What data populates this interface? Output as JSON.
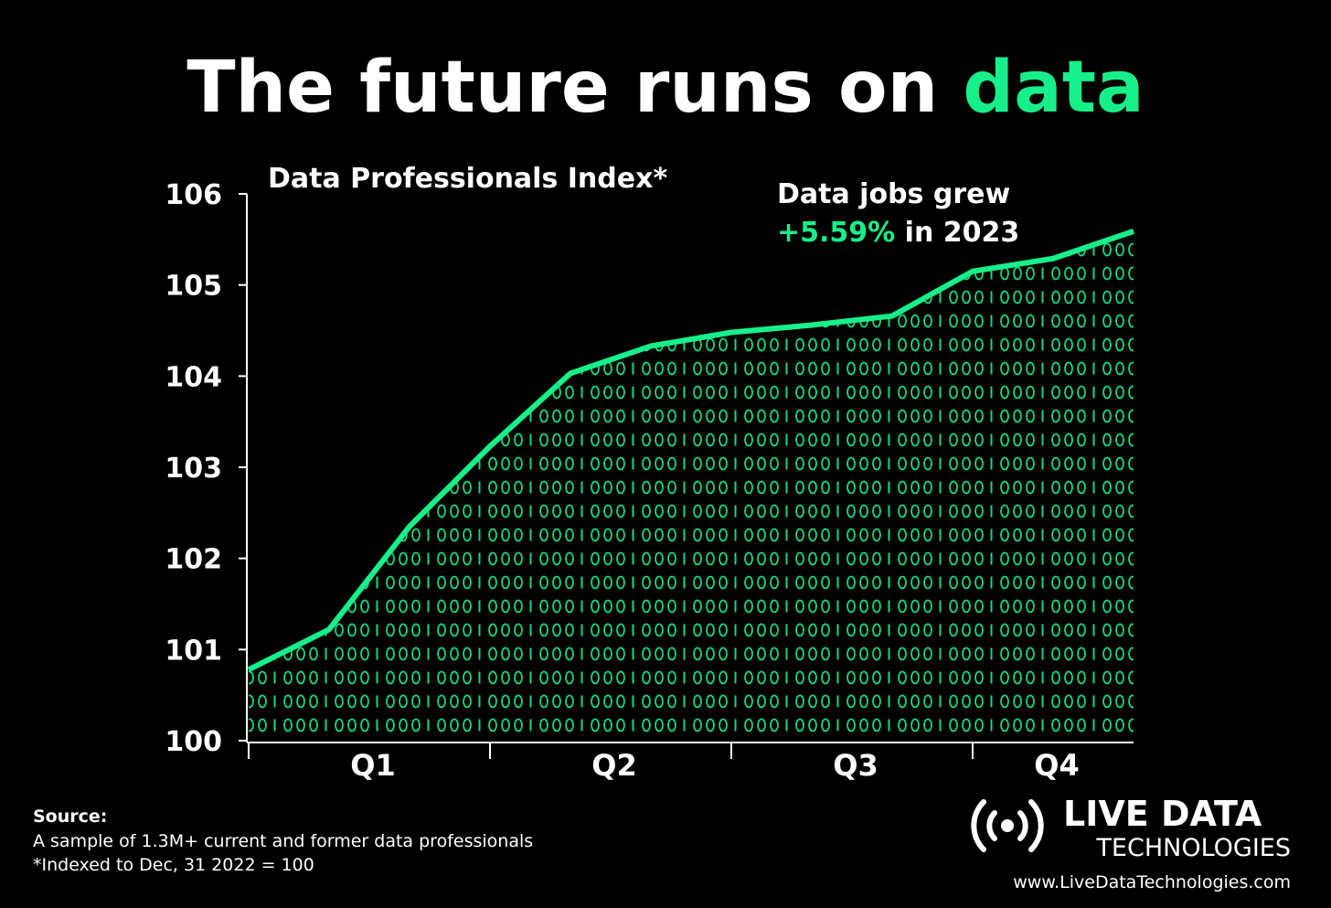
{
  "chart_data": {
    "type": "line",
    "title": "The future runs on",
    "title_highlight": "data",
    "subtitle": "Data Professionals Index*",
    "annotation": {
      "line1": "Data jobs grew",
      "highlight": "+5.59%",
      "rest": "in 2023"
    },
    "categories": [
      null,
      null,
      null,
      null,
      null,
      null,
      null,
      null,
      null,
      null,
      null,
      null
    ],
    "quarters": [
      "Q1",
      "Q2",
      "Q3",
      "Q4"
    ],
    "values": [
      100.78,
      101.22,
      102.35,
      103.23,
      104.03,
      104.33,
      104.48,
      104.56,
      104.66,
      105.15,
      105.29,
      105.59
    ],
    "color": "#17f08a",
    "ylim": [
      100,
      106
    ],
    "yticks": [
      100,
      101,
      102,
      103,
      104,
      105,
      106
    ],
    "source_label": "Source:",
    "source_lines": [
      "A sample of 1.3M+ current and former data professionals",
      "*Indexed to Dec, 31 2022 = 100"
    ],
    "brand": {
      "name": "LIVE DATA",
      "sub": "TECHNOLOGIES",
      "url": "www.LiveDataTechnologies.com"
    }
  }
}
